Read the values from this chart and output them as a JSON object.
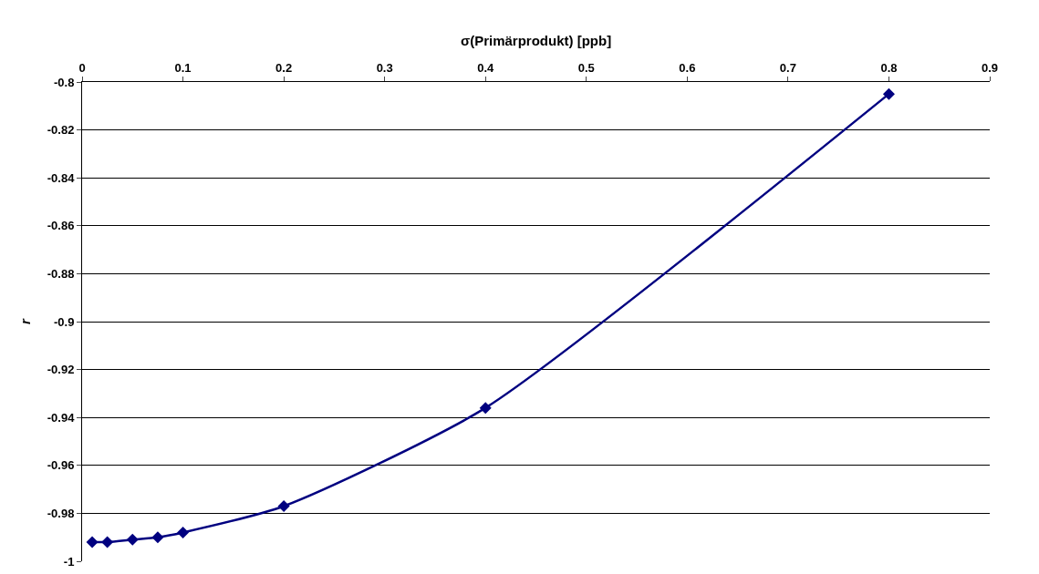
{
  "chart_data": {
    "type": "line",
    "xlabel": "σ(Primärprodukt) [ppb]",
    "ylabel": "r",
    "x": [
      0.01,
      0.025,
      0.05,
      0.075,
      0.1,
      0.2,
      0.4,
      0.8
    ],
    "series": [
      {
        "color": "#000080",
        "values": [
          -0.992,
          -0.992,
          -0.991,
          -0.99,
          -0.988,
          -0.977,
          -0.936,
          -0.805
        ]
      }
    ],
    "xlim": [
      0,
      0.9
    ],
    "xticks": [
      0,
      0.1,
      0.2,
      0.3,
      0.4,
      0.5,
      0.6,
      0.7,
      0.8,
      0.9
    ],
    "ylim": [
      -1,
      -0.8
    ],
    "yticks": [
      -1,
      -0.98,
      -0.96,
      -0.94,
      -0.92,
      -0.9,
      -0.88,
      -0.86,
      -0.84,
      -0.82,
      -0.8
    ],
    "grid": "y",
    "marker": "diamond",
    "line_style": "solid"
  }
}
